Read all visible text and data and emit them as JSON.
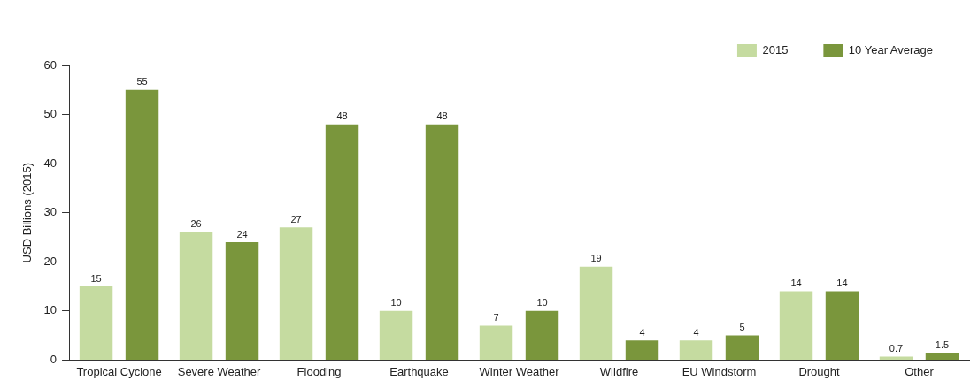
{
  "chart_data": {
    "type": "bar",
    "categories": [
      "Tropical Cyclone",
      "Severe Weather",
      "Flooding",
      "Earthquake",
      "Winter Weather",
      "Wildfire",
      "EU Windstorm",
      "Drought",
      "Other"
    ],
    "series": [
      {
        "name": "2015",
        "color": "#c5dba0",
        "values": [
          15,
          26,
          27,
          10,
          7,
          19,
          4,
          14,
          0.7
        ]
      },
      {
        "name": "10 Year Average",
        "color": "#7a963c",
        "values": [
          55,
          24,
          48,
          48,
          10,
          4,
          5,
          14,
          1.5
        ]
      }
    ],
    "ylabel": "USD Billions (2015)",
    "ylim": [
      0,
      60
    ],
    "yticks": [
      0,
      10,
      20,
      30,
      40,
      50,
      60
    ],
    "grid": false,
    "legend": "top right",
    "data_labels": true
  }
}
